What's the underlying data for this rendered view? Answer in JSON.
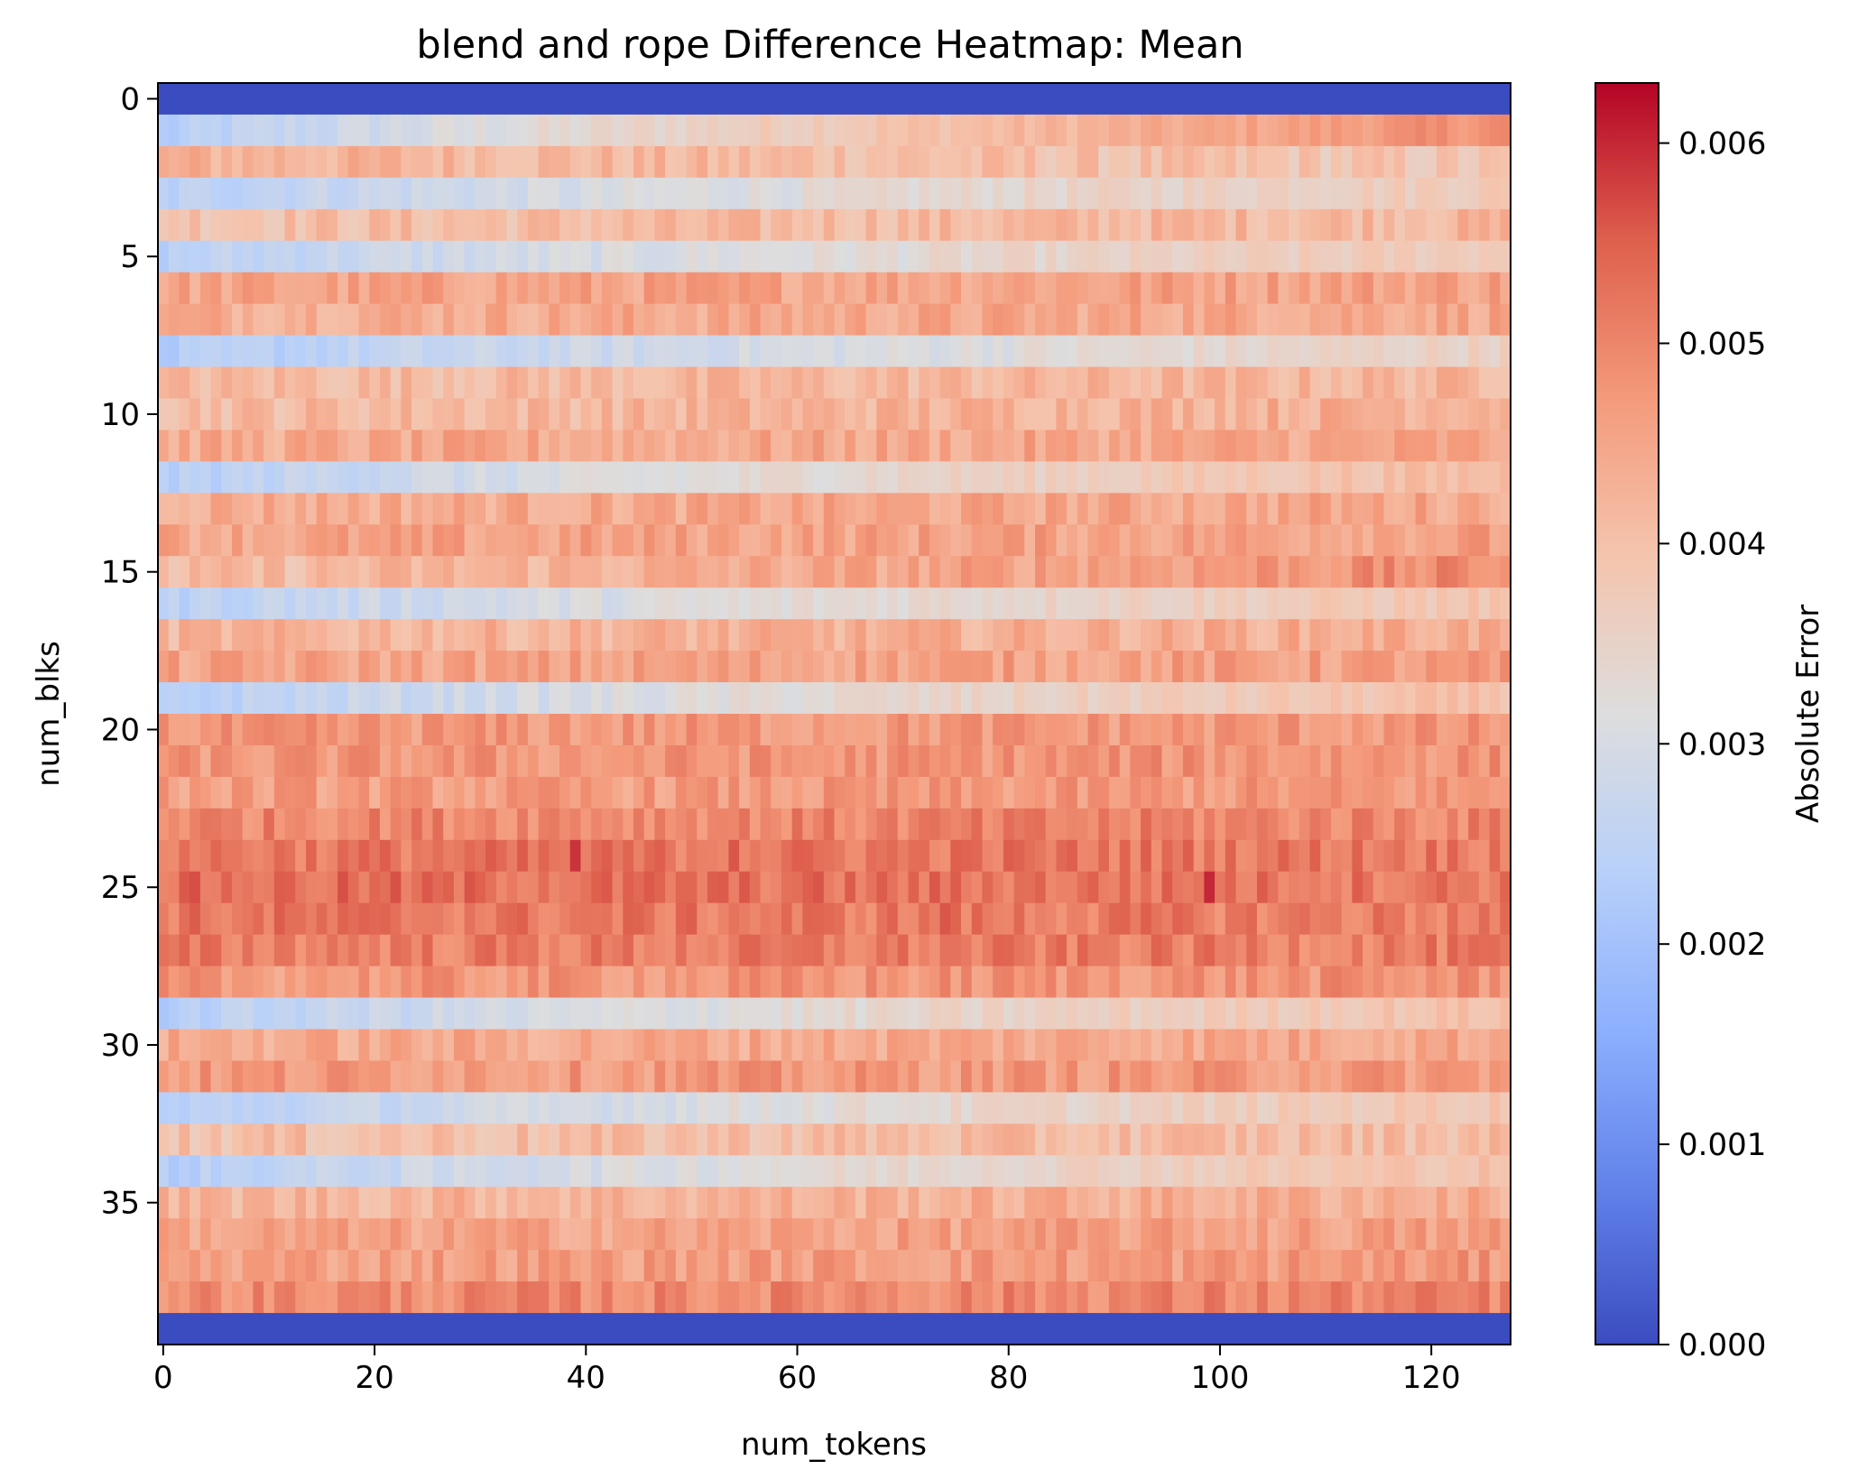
{
  "chart_data": {
    "type": "heatmap",
    "title": "blend and rope Difference Heatmap: Mean",
    "xlabel": "num_tokens",
    "ylabel": "num_blks",
    "n_cols": 128,
    "n_rows": 40,
    "x_ticks": [
      0,
      20,
      40,
      60,
      80,
      100,
      120
    ],
    "y_ticks": [
      0,
      5,
      10,
      15,
      20,
      25,
      30,
      35
    ],
    "colormap": "coolwarm",
    "colorbar": {
      "label": "Absolute Error",
      "min": 0.0,
      "max": 0.0063,
      "ticks": [
        0.0,
        0.001,
        0.002,
        0.003,
        0.004,
        0.005,
        0.006
      ],
      "tick_labels": [
        "0.000",
        "0.001",
        "0.002",
        "0.003",
        "0.004",
        "0.005",
        "0.006"
      ]
    },
    "row_profiles": [
      {
        "row": 0,
        "kind": "constant",
        "start": 0.0,
        "end": 0.0
      },
      {
        "row": 1,
        "kind": "ramp",
        "start": 0.0022,
        "end": 0.0049
      },
      {
        "row": 2,
        "kind": "flat",
        "start": 0.0043,
        "end": 0.0038
      },
      {
        "row": 3,
        "kind": "ramp",
        "start": 0.0024,
        "end": 0.0038
      },
      {
        "row": 4,
        "kind": "flat",
        "start": 0.004,
        "end": 0.0042
      },
      {
        "row": 5,
        "kind": "ramp",
        "start": 0.0024,
        "end": 0.0038
      },
      {
        "row": 6,
        "kind": "flat",
        "start": 0.0045,
        "end": 0.0046
      },
      {
        "row": 7,
        "kind": "flat",
        "start": 0.0044,
        "end": 0.0045
      },
      {
        "row": 8,
        "kind": "ramp",
        "start": 0.0022,
        "end": 0.0036
      },
      {
        "row": 9,
        "kind": "flat",
        "start": 0.0041,
        "end": 0.0042
      },
      {
        "row": 10,
        "kind": "flat",
        "start": 0.0041,
        "end": 0.0044
      },
      {
        "row": 11,
        "kind": "flat",
        "start": 0.0044,
        "end": 0.0045
      },
      {
        "row": 12,
        "kind": "ramp",
        "start": 0.0023,
        "end": 0.0041
      },
      {
        "row": 13,
        "kind": "flat",
        "start": 0.0044,
        "end": 0.0045
      },
      {
        "row": 14,
        "kind": "flat",
        "start": 0.0045,
        "end": 0.0046
      },
      {
        "row": 15,
        "kind": "flat",
        "start": 0.004,
        "end": 0.0049
      },
      {
        "row": 16,
        "kind": "ramp",
        "start": 0.0024,
        "end": 0.0039
      },
      {
        "row": 17,
        "kind": "flat",
        "start": 0.0042,
        "end": 0.0044
      },
      {
        "row": 18,
        "kind": "flat",
        "start": 0.0045,
        "end": 0.0046
      },
      {
        "row": 19,
        "kind": "ramp",
        "start": 0.0023,
        "end": 0.004
      },
      {
        "row": 20,
        "kind": "flat",
        "start": 0.0047,
        "end": 0.0047
      },
      {
        "row": 21,
        "kind": "flat",
        "start": 0.0047,
        "end": 0.0048
      },
      {
        "row": 22,
        "kind": "flat",
        "start": 0.0046,
        "end": 0.0047
      },
      {
        "row": 23,
        "kind": "flat",
        "start": 0.005,
        "end": 0.005
      },
      {
        "row": 24,
        "kind": "flat",
        "start": 0.0052,
        "end": 0.0052
      },
      {
        "row": 25,
        "kind": "flat",
        "start": 0.0053,
        "end": 0.0052
      },
      {
        "row": 26,
        "kind": "flat",
        "start": 0.0052,
        "end": 0.0051
      },
      {
        "row": 27,
        "kind": "flat",
        "start": 0.0051,
        "end": 0.0051
      },
      {
        "row": 28,
        "kind": "flat",
        "start": 0.0047,
        "end": 0.0048
      },
      {
        "row": 29,
        "kind": "ramp",
        "start": 0.0023,
        "end": 0.004
      },
      {
        "row": 30,
        "kind": "flat",
        "start": 0.0044,
        "end": 0.0045
      },
      {
        "row": 31,
        "kind": "flat",
        "start": 0.0047,
        "end": 0.0047
      },
      {
        "row": 32,
        "kind": "ramp",
        "start": 0.0023,
        "end": 0.0039
      },
      {
        "row": 33,
        "kind": "flat",
        "start": 0.004,
        "end": 0.0041
      },
      {
        "row": 34,
        "kind": "ramp",
        "start": 0.0023,
        "end": 0.004
      },
      {
        "row": 35,
        "kind": "flat",
        "start": 0.0042,
        "end": 0.0044
      },
      {
        "row": 36,
        "kind": "flat",
        "start": 0.0045,
        "end": 0.0046
      },
      {
        "row": 37,
        "kind": "flat",
        "start": 0.0046,
        "end": 0.0047
      },
      {
        "row": 38,
        "kind": "flat",
        "start": 0.0049,
        "end": 0.005
      },
      {
        "row": 39,
        "kind": "constant",
        "start": 0.0,
        "end": 0.0
      }
    ],
    "notable_cells": [
      {
        "row": 24,
        "col": 39,
        "value": 0.0059
      },
      {
        "row": 25,
        "col": 99,
        "value": 0.006
      },
      {
        "row": 26,
        "col": 74,
        "value": 0.0056
      },
      {
        "row": 24,
        "col": 54,
        "value": 0.0056
      }
    ]
  }
}
